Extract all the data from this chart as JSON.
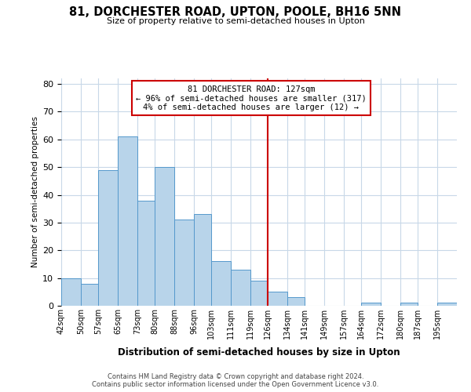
{
  "title": "81, DORCHESTER ROAD, UPTON, POOLE, BH16 5NN",
  "subtitle": "Size of property relative to semi-detached houses in Upton",
  "xlabel": "Distribution of semi-detached houses by size in Upton",
  "ylabel": "Number of semi-detached properties",
  "footer_line1": "Contains HM Land Registry data © Crown copyright and database right 2024.",
  "footer_line2": "Contains public sector information licensed under the Open Government Licence v3.0.",
  "bin_labels": [
    "42sqm",
    "50sqm",
    "57sqm",
    "65sqm",
    "73sqm",
    "80sqm",
    "88sqm",
    "96sqm",
    "103sqm",
    "111sqm",
    "119sqm",
    "126sqm",
    "134sqm",
    "141sqm",
    "149sqm",
    "157sqm",
    "164sqm",
    "172sqm",
    "180sqm",
    "187sqm",
    "195sqm"
  ],
  "bin_edges": [
    42,
    50,
    57,
    65,
    73,
    80,
    88,
    96,
    103,
    111,
    119,
    126,
    134,
    141,
    149,
    157,
    164,
    172,
    180,
    187,
    195
  ],
  "bar_heights": [
    10,
    8,
    49,
    61,
    38,
    50,
    31,
    33,
    16,
    13,
    9,
    5,
    3,
    0,
    0,
    0,
    1,
    0,
    1,
    0,
    1
  ],
  "bar_color": "#b8d4ea",
  "bar_edge_color": "#5599cc",
  "property_line_x": 126,
  "annotation_box_color": "#ffffff",
  "annotation_box_edge": "#cc0000",
  "line_color": "#cc0000",
  "ylim": [
    0,
    82
  ],
  "yticks": [
    0,
    10,
    20,
    30,
    40,
    50,
    60,
    70,
    80
  ],
  "background_color": "#ffffff",
  "grid_color": "#c8d8e8",
  "ann_title": "81 DORCHESTER ROAD: 127sqm",
  "ann_line2": "← 96% of semi-detached houses are smaller (317)",
  "ann_line3": "4% of semi-detached houses are larger (12) →"
}
